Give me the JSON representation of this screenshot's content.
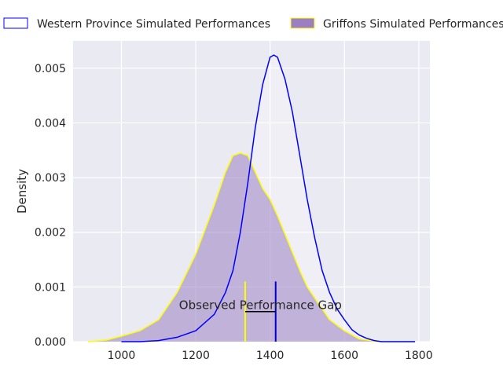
{
  "chart_data": {
    "type": "area",
    "title": "",
    "xlabel": "",
    "ylabel": "Density",
    "xlim": [
      870,
      1830
    ],
    "ylim": [
      0,
      0.0055
    ],
    "xticks": [
      1000,
      1200,
      1400,
      1600,
      1800
    ],
    "yticks": [
      0.0,
      0.001,
      0.002,
      0.003,
      0.004,
      0.005
    ],
    "xtick_labels": [
      "1000",
      "1200",
      "1400",
      "1600",
      "1800"
    ],
    "ytick_labels": [
      "0.000",
      "0.001",
      "0.002",
      "0.003",
      "0.004",
      "0.005"
    ],
    "grid": true,
    "legend_placement": "top",
    "series": [
      {
        "name": "Western Province Simulated Performances",
        "line_color": "#0000ff",
        "fill_color": "#ffffff",
        "x": [
          1000,
          1050,
          1100,
          1150,
          1200,
          1250,
          1280,
          1300,
          1320,
          1340,
          1360,
          1380,
          1400,
          1410,
          1420,
          1440,
          1460,
          1480,
          1500,
          1520,
          1540,
          1560,
          1580,
          1600,
          1620,
          1640,
          1660,
          1680,
          1700,
          1730,
          1760,
          1790
        ],
        "y": [
          0.0,
          0.0,
          2e-05,
          8e-05,
          0.0002,
          0.0005,
          0.0009,
          0.0013,
          0.002,
          0.0029,
          0.0039,
          0.0047,
          0.0052,
          0.00524,
          0.0052,
          0.0048,
          0.0042,
          0.0034,
          0.0026,
          0.0019,
          0.0013,
          0.0009,
          0.0006,
          0.0004,
          0.00022,
          0.00012,
          6e-05,
          2e-05,
          0.0,
          0.0,
          0.0,
          0.0
        ]
      },
      {
        "name": "Griffons Simulated Performances",
        "line_color": "#ffff00",
        "fill_color": "#9b7fc3",
        "x": [
          910,
          960,
          1000,
          1050,
          1100,
          1150,
          1200,
          1250,
          1280,
          1300,
          1320,
          1340,
          1360,
          1380,
          1400,
          1420,
          1450,
          1480,
          1500,
          1530,
          1560,
          1600,
          1640,
          1680,
          1720,
          1760,
          1790
        ],
        "y": [
          0.0,
          3e-05,
          0.0001,
          0.0002,
          0.0004,
          0.0009,
          0.0016,
          0.0025,
          0.0031,
          0.0034,
          0.00345,
          0.0034,
          0.0031,
          0.0028,
          0.0026,
          0.0023,
          0.0018,
          0.0013,
          0.001,
          0.0007,
          0.0004,
          0.0002,
          5e-05,
          1e-05,
          0.0,
          0.0,
          0.0
        ]
      }
    ],
    "markers": [
      {
        "x": 1333,
        "y_top": 0.0011,
        "color": "#ffff00"
      },
      {
        "x": 1415,
        "y_top": 0.0011,
        "color": "#0000cc"
      }
    ],
    "gap_line": {
      "x1": 1333,
      "x2": 1415,
      "y": 0.00055,
      "color": "#000000"
    },
    "annotation": {
      "text": "Observed Performance Gap",
      "x": 1374,
      "y": 0.00055
    }
  }
}
